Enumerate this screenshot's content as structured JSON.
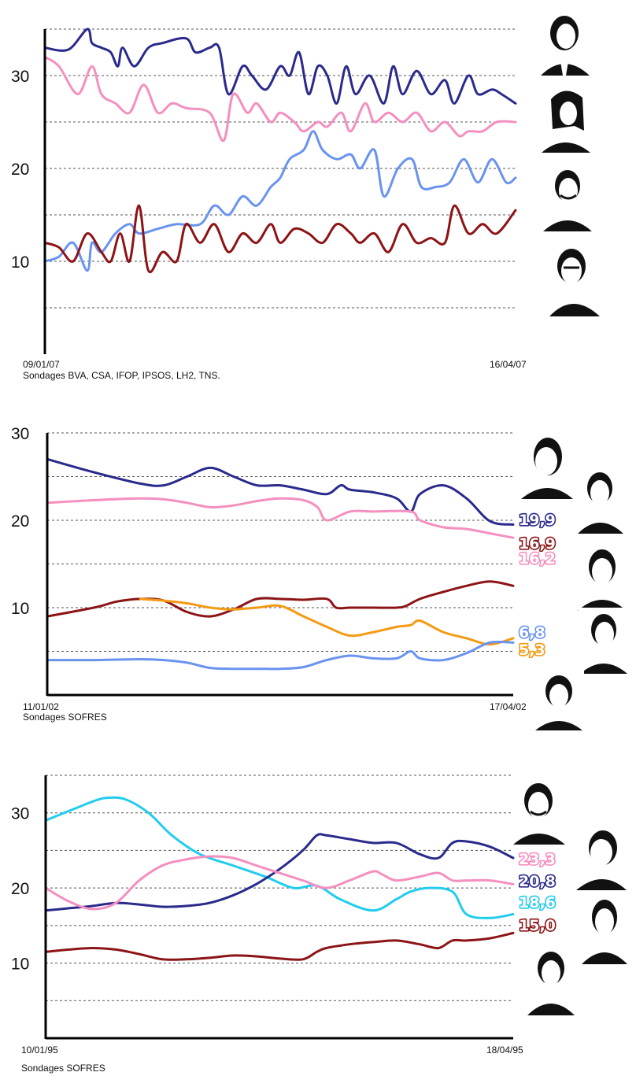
{
  "colors": {
    "navy": "#2a2a8c",
    "pink": "#f48fbf",
    "blue": "#6a93f0",
    "maroon": "#8c1416",
    "orange": "#f49a14",
    "cyan": "#22ccee"
  },
  "chart_data": [
    {
      "type": "line",
      "title": "",
      "xlabel": "",
      "ylabel": "",
      "date_start": "09/01/07",
      "date_end": "16/04/07",
      "source": "Sondages BVA, CSA, IFOP, IPSOS, LH2, TNS.",
      "ylim": [
        0,
        35
      ],
      "yticks": [
        "10",
        "20",
        "30"
      ],
      "ytick_values": [
        10,
        20,
        30
      ],
      "grid_values": [
        5,
        15,
        25,
        35
      ],
      "grid": true,
      "portraits": 4,
      "series": [
        {
          "color": "navy",
          "x": [
            0,
            0.05,
            0.09,
            0.1,
            0.12,
            0.14,
            0.155,
            0.165,
            0.19,
            0.22,
            0.25,
            0.3,
            0.32,
            0.35,
            0.37,
            0.39,
            0.42,
            0.44,
            0.47,
            0.5,
            0.52,
            0.54,
            0.56,
            0.58,
            0.6,
            0.62,
            0.64,
            0.66,
            0.69,
            0.72,
            0.74,
            0.76,
            0.79,
            0.82,
            0.85,
            0.87,
            0.9,
            0.92,
            0.95,
            0.97,
            1
          ],
          "y": [
            33,
            32.8,
            35,
            33.5,
            33,
            32.5,
            31,
            33,
            31,
            33,
            33.5,
            34,
            32.5,
            33,
            33,
            28,
            31,
            30,
            28.5,
            31,
            30,
            32.5,
            28,
            31,
            30,
            27,
            31,
            28,
            30,
            27,
            31,
            28,
            30.5,
            28,
            29.5,
            27,
            30,
            28,
            28.5,
            28,
            27
          ]
        },
        {
          "color": "pink",
          "x": [
            0,
            0.03,
            0.07,
            0.1,
            0.12,
            0.15,
            0.18,
            0.21,
            0.24,
            0.27,
            0.3,
            0.35,
            0.38,
            0.4,
            0.43,
            0.45,
            0.48,
            0.5,
            0.53,
            0.55,
            0.58,
            0.6,
            0.63,
            0.65,
            0.68,
            0.7,
            0.73,
            0.76,
            0.79,
            0.82,
            0.85,
            0.88,
            0.9,
            0.93,
            0.96,
            1
          ],
          "y": [
            32,
            31,
            28,
            31,
            28,
            27,
            26,
            29,
            26,
            27,
            26.5,
            26,
            23,
            28,
            26,
            27,
            25,
            26,
            25,
            24,
            25,
            24.5,
            26,
            24,
            27,
            25,
            26,
            25,
            26,
            24,
            25,
            23.5,
            24,
            24,
            25,
            25
          ]
        },
        {
          "color": "blue",
          "x": [
            0,
            0.03,
            0.06,
            0.09,
            0.1,
            0.12,
            0.15,
            0.18,
            0.2,
            0.24,
            0.28,
            0.33,
            0.36,
            0.39,
            0.42,
            0.45,
            0.48,
            0.5,
            0.52,
            0.55,
            0.57,
            0.59,
            0.62,
            0.65,
            0.67,
            0.7,
            0.72,
            0.75,
            0.78,
            0.8,
            0.83,
            0.86,
            0.89,
            0.92,
            0.95,
            0.98,
            1
          ],
          "y": [
            10,
            10.5,
            12,
            9,
            12,
            11,
            13,
            14,
            13,
            13.5,
            14,
            14,
            16,
            15,
            17,
            16,
            18,
            19,
            21,
            22,
            24,
            22,
            21,
            21.5,
            20,
            22,
            17,
            20,
            21,
            18,
            18,
            18.5,
            21,
            18.5,
            21,
            18.5,
            19
          ]
        },
        {
          "color": "maroon",
          "x": [
            0,
            0.03,
            0.06,
            0.09,
            0.12,
            0.14,
            0.16,
            0.18,
            0.2,
            0.22,
            0.25,
            0.28,
            0.3,
            0.33,
            0.36,
            0.39,
            0.42,
            0.45,
            0.48,
            0.5,
            0.53,
            0.56,
            0.59,
            0.62,
            0.65,
            0.67,
            0.7,
            0.73,
            0.76,
            0.79,
            0.82,
            0.85,
            0.87,
            0.9,
            0.93,
            0.96,
            1
          ],
          "y": [
            12,
            11.5,
            10,
            13,
            11,
            10,
            13,
            10,
            16,
            9,
            11,
            10,
            14,
            12,
            14,
            11,
            13,
            12,
            14,
            12,
            13.5,
            13,
            12,
            14,
            13,
            12,
            13,
            11,
            14,
            12,
            12.5,
            12,
            16,
            13,
            14,
            13,
            15.5
          ]
        }
      ]
    },
    {
      "type": "line",
      "title": "",
      "xlabel": "",
      "ylabel": "",
      "date_start": "11/01/02",
      "date_end": "17/04/02",
      "source": "Sondages SOFRES",
      "ylim": [
        0,
        30
      ],
      "yticks": [
        "10",
        "20",
        "30"
      ],
      "ytick_values": [
        10,
        20,
        30
      ],
      "grid_values": [
        5,
        15,
        25,
        30
      ],
      "grid": true,
      "portraits": 6,
      "final_labels": [
        {
          "text": "19,9",
          "color": "navy",
          "value": 19.9
        },
        {
          "text": "16,9",
          "color": "maroon",
          "value": 16.9
        },
        {
          "text": "16,2",
          "color": "pink",
          "value": 16.2
        },
        {
          "text": "6,8",
          "color": "blue",
          "value": 6.8
        },
        {
          "text": "5,3",
          "color": "orange",
          "value": 5.3
        }
      ],
      "series": [
        {
          "color": "navy",
          "x": [
            0,
            0.1,
            0.2,
            0.25,
            0.3,
            0.35,
            0.4,
            0.45,
            0.5,
            0.55,
            0.6,
            0.63,
            0.65,
            0.7,
            0.75,
            0.78,
            0.8,
            0.85,
            0.9,
            0.95,
            1
          ],
          "y": [
            27,
            25.5,
            24.2,
            24,
            25,
            26,
            25,
            24,
            24,
            23.5,
            23,
            24,
            23.5,
            23.2,
            22.5,
            21,
            23,
            24,
            22.5,
            19.9,
            19.5
          ]
        },
        {
          "color": "pink",
          "x": [
            0,
            0.1,
            0.2,
            0.25,
            0.3,
            0.35,
            0.4,
            0.45,
            0.5,
            0.55,
            0.58,
            0.6,
            0.65,
            0.7,
            0.78,
            0.8,
            0.85,
            0.9,
            0.95,
            1
          ],
          "y": [
            22,
            22.3,
            22.5,
            22.4,
            22,
            21.5,
            21.7,
            22.2,
            22.5,
            22.3,
            21.5,
            20,
            21,
            21,
            21,
            20,
            19.2,
            19,
            18.5,
            18
          ]
        },
        {
          "color": "maroon",
          "x": [
            0,
            0.1,
            0.15,
            0.2,
            0.25,
            0.3,
            0.35,
            0.4,
            0.45,
            0.5,
            0.55,
            0.6,
            0.62,
            0.65,
            0.7,
            0.75,
            0.77,
            0.8,
            0.85,
            0.9,
            0.95,
            1
          ],
          "y": [
            9,
            10,
            10.7,
            11,
            10.8,
            9.5,
            9,
            9.8,
            11,
            11,
            10.9,
            11,
            10,
            10,
            10,
            10,
            10.2,
            11,
            11.8,
            12.5,
            13,
            12.5
          ]
        },
        {
          "color": "orange",
          "x": [
            0.2,
            0.25,
            0.3,
            0.35,
            0.4,
            0.45,
            0.5,
            0.55,
            0.6,
            0.65,
            0.7,
            0.75,
            0.78,
            0.8,
            0.85,
            0.9,
            0.95,
            1
          ],
          "y": [
            11,
            10.8,
            10.5,
            10,
            9.8,
            10,
            10.2,
            9,
            7.8,
            6.8,
            7.2,
            7.8,
            8,
            8.5,
            7.2,
            6.5,
            5.8,
            6.5
          ]
        },
        {
          "color": "blue",
          "x": [
            0,
            0.1,
            0.2,
            0.25,
            0.3,
            0.35,
            0.4,
            0.45,
            0.5,
            0.55,
            0.6,
            0.65,
            0.7,
            0.75,
            0.78,
            0.8,
            0.85,
            0.9,
            0.95,
            1
          ],
          "y": [
            4,
            4,
            4.1,
            4,
            3.7,
            3.1,
            3,
            3,
            3,
            3.2,
            4,
            4.5,
            4.2,
            4.2,
            5,
            4.2,
            4,
            4.8,
            6,
            6
          ]
        }
      ]
    },
    {
      "type": "line",
      "title": "",
      "xlabel": "",
      "ylabel": "",
      "date_start": "10/01/95",
      "date_end": "18/04/95",
      "source": "Sondages SOFRES",
      "ylim": [
        0,
        35
      ],
      "yticks": [
        "10",
        "20",
        "30"
      ],
      "ytick_values": [
        10,
        20,
        30
      ],
      "grid_values": [
        5,
        15,
        25,
        35
      ],
      "grid": true,
      "portraits": 4,
      "final_labels": [
        {
          "text": "23,3",
          "color": "pink",
          "value": 23.3
        },
        {
          "text": "20,8",
          "color": "navy",
          "value": 20.8
        },
        {
          "text": "18,6",
          "color": "cyan",
          "value": 18.6
        },
        {
          "text": "15,0",
          "color": "maroon",
          "value": 15.0
        }
      ],
      "series": [
        {
          "color": "cyan",
          "x": [
            0,
            0.06,
            0.1,
            0.13,
            0.17,
            0.22,
            0.27,
            0.33,
            0.4,
            0.47,
            0.53,
            0.58,
            0.63,
            0.7,
            0.75,
            0.78,
            0.82,
            0.87,
            0.9,
            0.95,
            1
          ],
          "y": [
            29,
            30.5,
            31.5,
            32,
            31.8,
            30,
            27,
            24.5,
            23,
            21.5,
            20,
            20.3,
            18.5,
            17,
            18.5,
            19.5,
            20,
            19.5,
            16.5,
            16,
            16.5
          ]
        },
        {
          "color": "navy",
          "x": [
            0,
            0.05,
            0.1,
            0.15,
            0.2,
            0.25,
            0.3,
            0.35,
            0.4,
            0.45,
            0.5,
            0.55,
            0.58,
            0.6,
            0.65,
            0.7,
            0.75,
            0.8,
            0.84,
            0.87,
            0.9,
            0.95,
            1
          ],
          "y": [
            17,
            17.3,
            17.6,
            18,
            17.8,
            17.5,
            17.6,
            18,
            19,
            20.5,
            22.5,
            25,
            27,
            27,
            26.5,
            26,
            26,
            24.5,
            24,
            26,
            26.2,
            25.5,
            24
          ]
        },
        {
          "color": "pink",
          "x": [
            0,
            0.05,
            0.1,
            0.15,
            0.2,
            0.25,
            0.3,
            0.35,
            0.4,
            0.45,
            0.5,
            0.55,
            0.6,
            0.65,
            0.7,
            0.72,
            0.75,
            0.8,
            0.84,
            0.87,
            0.9,
            0.95,
            1
          ],
          "y": [
            20,
            18.2,
            17.2,
            18,
            21,
            23,
            23.8,
            24.2,
            24,
            23,
            22,
            21,
            20,
            21,
            22.2,
            21.8,
            21,
            21.5,
            22,
            21,
            21,
            21,
            20.5
          ]
        },
        {
          "color": "maroon",
          "x": [
            0,
            0.05,
            0.1,
            0.15,
            0.2,
            0.25,
            0.3,
            0.35,
            0.4,
            0.45,
            0.5,
            0.55,
            0.58,
            0.6,
            0.65,
            0.7,
            0.75,
            0.8,
            0.84,
            0.87,
            0.9,
            0.95,
            1
          ],
          "y": [
            11.5,
            11.8,
            12,
            11.8,
            11.2,
            10.5,
            10.5,
            10.7,
            11,
            10.9,
            10.6,
            10.5,
            11.5,
            12,
            12.5,
            12.8,
            13,
            12.5,
            12,
            13,
            13,
            13.3,
            14
          ]
        }
      ]
    }
  ]
}
